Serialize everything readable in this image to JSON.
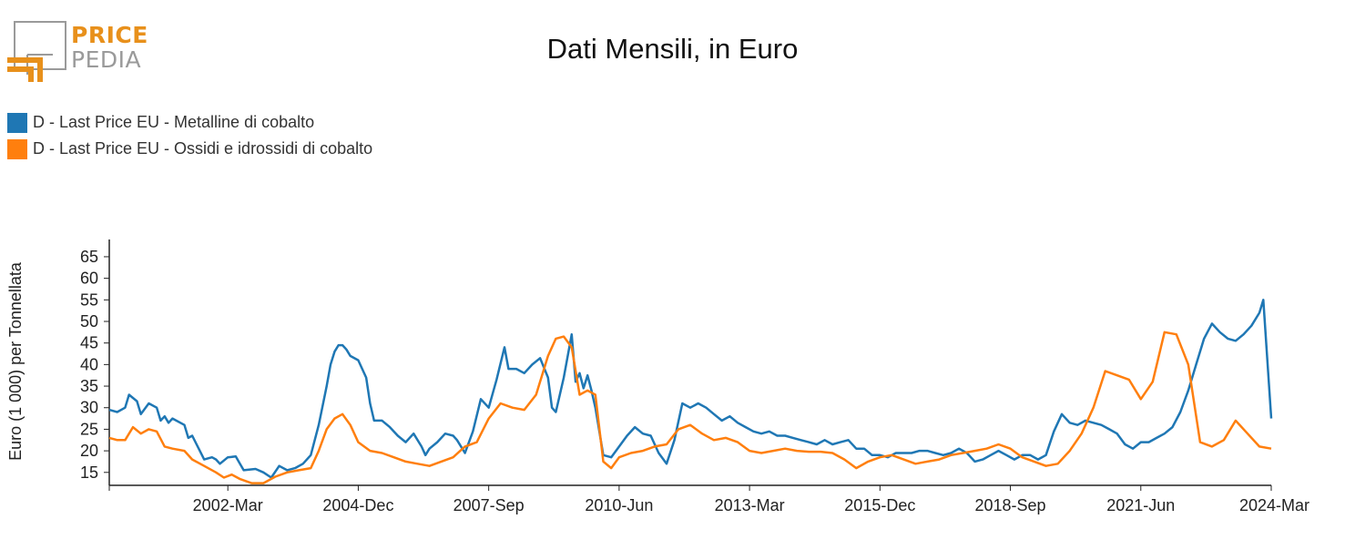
{
  "logo": {
    "line1": "PRICE",
    "line2": "PEDIA",
    "colors": {
      "orange": "#e8901b",
      "grey": "#9a9a9a"
    }
  },
  "title": "Dati Mensili, in Euro",
  "legend": [
    {
      "label": "D - Last Price EU - Metalline di cobalto",
      "color": "#1f77b4"
    },
    {
      "label": "D - Last Price EU - Ossidi e idrossidi di cobalto",
      "color": "#ff7f0e"
    }
  ],
  "chart_data": {
    "type": "line",
    "ylabel": "Euro (1 000) per Tonnellata",
    "ylim": [
      12,
      69
    ],
    "yticks": [
      15,
      20,
      25,
      30,
      35,
      40,
      45,
      50,
      55,
      60,
      65
    ],
    "x_range": [
      "1999-09",
      "2024-03"
    ],
    "x_ticks": [
      "2002-Mar",
      "2004-Dec",
      "2007-Sep",
      "2010-Jun",
      "2013-Mar",
      "2015-Dec",
      "2018-Sep",
      "2021-Jun",
      "2024-Mar"
    ],
    "grid": false,
    "legend_position": "top-left",
    "series": [
      {
        "name": "D - Last Price EU - Metalline di cobalto",
        "color": "#1f77b4",
        "points": [
          [
            "1999-09",
            29.5
          ],
          [
            "1999-11",
            29.0
          ],
          [
            "2000-01",
            30.0
          ],
          [
            "2000-02",
            33.0
          ],
          [
            "2000-04",
            31.5
          ],
          [
            "2000-05",
            28.5
          ],
          [
            "2000-07",
            31.0
          ],
          [
            "2000-09",
            30.0
          ],
          [
            "2000-10",
            27.0
          ],
          [
            "2000-11",
            28.0
          ],
          [
            "2000-12",
            26.5
          ],
          [
            "2001-01",
            27.5
          ],
          [
            "2001-04",
            26.0
          ],
          [
            "2001-05",
            23.0
          ],
          [
            "2001-06",
            23.5
          ],
          [
            "2001-09",
            18.0
          ],
          [
            "2001-11",
            18.5
          ],
          [
            "2001-12",
            18.0
          ],
          [
            "2002-01",
            17.0
          ],
          [
            "2002-03",
            18.5
          ],
          [
            "2002-05",
            18.7
          ],
          [
            "2002-07",
            15.5
          ],
          [
            "2002-10",
            15.8
          ],
          [
            "2002-12",
            15.0
          ],
          [
            "2003-02",
            13.8
          ],
          [
            "2003-04",
            16.5
          ],
          [
            "2003-06",
            15.5
          ],
          [
            "2003-08",
            16.0
          ],
          [
            "2003-10",
            17.0
          ],
          [
            "2003-12",
            19.0
          ],
          [
            "2004-02",
            26.0
          ],
          [
            "2004-04",
            35.0
          ],
          [
            "2004-05",
            40.0
          ],
          [
            "2004-06",
            43.0
          ],
          [
            "2004-07",
            44.5
          ],
          [
            "2004-08",
            44.5
          ],
          [
            "2004-09",
            43.5
          ],
          [
            "2004-10",
            42.0
          ],
          [
            "2004-12",
            41.0
          ],
          [
            "2005-02",
            37.0
          ],
          [
            "2005-03",
            31.0
          ],
          [
            "2005-04",
            27.0
          ],
          [
            "2005-06",
            27.0
          ],
          [
            "2005-08",
            25.5
          ],
          [
            "2005-10",
            23.5
          ],
          [
            "2005-12",
            22.0
          ],
          [
            "2006-02",
            24.0
          ],
          [
            "2006-04",
            21.0
          ],
          [
            "2006-05",
            19.0
          ],
          [
            "2006-06",
            20.5
          ],
          [
            "2006-08",
            22.0
          ],
          [
            "2006-10",
            24.0
          ],
          [
            "2006-12",
            23.5
          ],
          [
            "2007-01",
            22.5
          ],
          [
            "2007-03",
            19.5
          ],
          [
            "2007-05",
            24.5
          ],
          [
            "2007-07",
            32.0
          ],
          [
            "2007-09",
            30.0
          ],
          [
            "2007-11",
            36.5
          ],
          [
            "2008-01",
            44.0
          ],
          [
            "2008-02",
            39.0
          ],
          [
            "2008-04",
            39.0
          ],
          [
            "2008-06",
            38.0
          ],
          [
            "2008-08",
            40.0
          ],
          [
            "2008-10",
            41.5
          ],
          [
            "2008-12",
            37.0
          ],
          [
            "2009-01",
            30.0
          ],
          [
            "2009-02",
            29.0
          ],
          [
            "2009-04",
            37.0
          ],
          [
            "2009-06",
            47.0
          ],
          [
            "2009-07",
            36.0
          ],
          [
            "2009-08",
            38.0
          ],
          [
            "2009-09",
            34.5
          ],
          [
            "2009-10",
            37.5
          ],
          [
            "2009-11",
            34.0
          ],
          [
            "2009-12",
            30.0
          ],
          [
            "2010-02",
            19.0
          ],
          [
            "2010-04",
            18.5
          ],
          [
            "2010-06",
            21.0
          ],
          [
            "2010-08",
            23.5
          ],
          [
            "2010-10",
            25.5
          ],
          [
            "2010-12",
            24.0
          ],
          [
            "2011-02",
            23.5
          ],
          [
            "2011-04",
            19.5
          ],
          [
            "2011-06",
            17.0
          ],
          [
            "2011-08",
            22.5
          ],
          [
            "2011-10",
            31.0
          ],
          [
            "2011-12",
            30.0
          ],
          [
            "2012-02",
            31.0
          ],
          [
            "2012-04",
            30.0
          ],
          [
            "2012-06",
            28.5
          ],
          [
            "2012-08",
            27.0
          ],
          [
            "2012-10",
            28.0
          ],
          [
            "2012-12",
            26.5
          ],
          [
            "2013-02",
            25.5
          ],
          [
            "2013-04",
            24.5
          ],
          [
            "2013-06",
            24.0
          ],
          [
            "2013-08",
            24.5
          ],
          [
            "2013-10",
            23.5
          ],
          [
            "2013-12",
            23.5
          ],
          [
            "2014-02",
            23.0
          ],
          [
            "2014-04",
            22.5
          ],
          [
            "2014-06",
            22.0
          ],
          [
            "2014-08",
            21.5
          ],
          [
            "2014-10",
            22.5
          ],
          [
            "2014-12",
            21.5
          ],
          [
            "2015-02",
            22.0
          ],
          [
            "2015-04",
            22.5
          ],
          [
            "2015-06",
            20.5
          ],
          [
            "2015-08",
            20.5
          ],
          [
            "2015-10",
            19.0
          ],
          [
            "2015-12",
            19.0
          ],
          [
            "2016-02",
            18.5
          ],
          [
            "2016-04",
            19.5
          ],
          [
            "2016-06",
            19.5
          ],
          [
            "2016-08",
            19.5
          ],
          [
            "2016-10",
            20.0
          ],
          [
            "2016-12",
            20.0
          ],
          [
            "2017-02",
            19.5
          ],
          [
            "2017-04",
            19.0
          ],
          [
            "2017-06",
            19.5
          ],
          [
            "2017-08",
            20.5
          ],
          [
            "2017-10",
            19.5
          ],
          [
            "2017-12",
            17.5
          ],
          [
            "2018-02",
            18.0
          ],
          [
            "2018-04",
            19.0
          ],
          [
            "2018-06",
            20.0
          ],
          [
            "2018-08",
            19.0
          ],
          [
            "2018-10",
            18.0
          ],
          [
            "2018-12",
            19.0
          ],
          [
            "2019-02",
            19.0
          ],
          [
            "2019-04",
            18.0
          ],
          [
            "2019-06",
            19.0
          ],
          [
            "2019-08",
            24.5
          ],
          [
            "2019-10",
            28.5
          ],
          [
            "2019-12",
            26.5
          ],
          [
            "2020-02",
            26.0
          ],
          [
            "2020-04",
            27.0
          ],
          [
            "2020-06",
            26.5
          ],
          [
            "2020-08",
            26.0
          ],
          [
            "2020-10",
            25.0
          ],
          [
            "2020-12",
            24.0
          ],
          [
            "2021-02",
            21.5
          ],
          [
            "2021-04",
            20.5
          ],
          [
            "2021-06",
            22.0
          ],
          [
            "2021-08",
            22.0
          ],
          [
            "2021-10",
            23.0
          ],
          [
            "2021-12",
            24.0
          ],
          [
            "2022-02",
            25.5
          ],
          [
            "2022-04",
            29.0
          ],
          [
            "2022-06",
            34.0
          ],
          [
            "2022-08",
            40.0
          ],
          [
            "2022-10",
            46.0
          ],
          [
            "2022-12",
            49.5
          ],
          [
            "2023-02",
            47.5
          ],
          [
            "2023-04",
            46.0
          ],
          [
            "2023-06",
            45.5
          ],
          [
            "2023-08",
            47.0
          ],
          [
            "2023-10",
            49.0
          ],
          [
            "2023-12",
            52.0
          ],
          [
            "2024-01",
            55.0
          ],
          [
            "2024-03",
            27.5
          ]
        ]
      },
      {
        "name": "D - Last Price EU - Ossidi e idrossidi di cobalto",
        "color": "#ff7f0e",
        "points": [
          [
            "1999-09",
            23.0
          ],
          [
            "1999-11",
            22.5
          ],
          [
            "2000-01",
            22.5
          ],
          [
            "2000-03",
            25.5
          ],
          [
            "2000-05",
            24.0
          ],
          [
            "2000-07",
            25.0
          ],
          [
            "2000-09",
            24.5
          ],
          [
            "2000-11",
            21.0
          ],
          [
            "2001-01",
            20.5
          ],
          [
            "2001-04",
            20.0
          ],
          [
            "2001-06",
            18.0
          ],
          [
            "2001-09",
            16.5
          ],
          [
            "2001-12",
            15.0
          ],
          [
            "2002-02",
            13.8
          ],
          [
            "2002-04",
            14.5
          ],
          [
            "2002-06",
            13.5
          ],
          [
            "2002-09",
            12.5
          ],
          [
            "2002-12",
            12.5
          ],
          [
            "2003-03",
            14.0
          ],
          [
            "2003-06",
            15.0
          ],
          [
            "2003-09",
            15.5
          ],
          [
            "2003-12",
            16.0
          ],
          [
            "2004-02",
            20.0
          ],
          [
            "2004-04",
            25.0
          ],
          [
            "2004-06",
            27.5
          ],
          [
            "2004-08",
            28.5
          ],
          [
            "2004-10",
            26.0
          ],
          [
            "2004-12",
            22.0
          ],
          [
            "2005-03",
            20.0
          ],
          [
            "2005-06",
            19.5
          ],
          [
            "2005-09",
            18.5
          ],
          [
            "2005-12",
            17.5
          ],
          [
            "2006-03",
            17.0
          ],
          [
            "2006-06",
            16.5
          ],
          [
            "2006-09",
            17.5
          ],
          [
            "2006-12",
            18.5
          ],
          [
            "2007-03",
            21.0
          ],
          [
            "2007-06",
            22.0
          ],
          [
            "2007-09",
            27.5
          ],
          [
            "2007-12",
            31.0
          ],
          [
            "2008-03",
            30.0
          ],
          [
            "2008-06",
            29.5
          ],
          [
            "2008-09",
            33.0
          ],
          [
            "2008-12",
            42.0
          ],
          [
            "2009-02",
            46.0
          ],
          [
            "2009-04",
            46.5
          ],
          [
            "2009-06",
            44.0
          ],
          [
            "2009-08",
            33.0
          ],
          [
            "2009-10",
            34.0
          ],
          [
            "2009-12",
            33.0
          ],
          [
            "2010-02",
            17.5
          ],
          [
            "2010-04",
            16.0
          ],
          [
            "2010-06",
            18.5
          ],
          [
            "2010-09",
            19.5
          ],
          [
            "2010-12",
            20.0
          ],
          [
            "2011-03",
            21.0
          ],
          [
            "2011-06",
            21.5
          ],
          [
            "2011-09",
            25.0
          ],
          [
            "2011-12",
            26.0
          ],
          [
            "2012-03",
            24.0
          ],
          [
            "2012-06",
            22.5
          ],
          [
            "2012-09",
            23.0
          ],
          [
            "2012-12",
            22.0
          ],
          [
            "2013-03",
            20.0
          ],
          [
            "2013-06",
            19.5
          ],
          [
            "2013-09",
            20.0
          ],
          [
            "2013-12",
            20.5
          ],
          [
            "2014-03",
            20.0
          ],
          [
            "2014-06",
            19.8
          ],
          [
            "2014-09",
            19.8
          ],
          [
            "2014-12",
            19.5
          ],
          [
            "2015-03",
            18.0
          ],
          [
            "2015-06",
            16.0
          ],
          [
            "2015-09",
            17.5
          ],
          [
            "2015-12",
            18.5
          ],
          [
            "2016-03",
            19.0
          ],
          [
            "2016-06",
            18.0
          ],
          [
            "2016-09",
            17.0
          ],
          [
            "2016-12",
            17.5
          ],
          [
            "2017-03",
            18.0
          ],
          [
            "2017-06",
            19.0
          ],
          [
            "2017-09",
            19.5
          ],
          [
            "2017-12",
            20.0
          ],
          [
            "2018-03",
            20.5
          ],
          [
            "2018-06",
            21.5
          ],
          [
            "2018-09",
            20.5
          ],
          [
            "2018-12",
            18.5
          ],
          [
            "2019-03",
            17.5
          ],
          [
            "2019-06",
            16.5
          ],
          [
            "2019-09",
            17.0
          ],
          [
            "2019-12",
            20.0
          ],
          [
            "2020-03",
            24.0
          ],
          [
            "2020-06",
            30.0
          ],
          [
            "2020-09",
            38.5
          ],
          [
            "2020-12",
            37.5
          ],
          [
            "2021-03",
            36.5
          ],
          [
            "2021-06",
            32.0
          ],
          [
            "2021-09",
            36.0
          ],
          [
            "2021-12",
            47.5
          ],
          [
            "2022-03",
            47.0
          ],
          [
            "2022-06",
            40.0
          ],
          [
            "2022-09",
            22.0
          ],
          [
            "2022-12",
            21.0
          ],
          [
            "2023-03",
            22.5
          ],
          [
            "2023-06",
            27.0
          ],
          [
            "2023-09",
            24.0
          ],
          [
            "2023-12",
            21.0
          ],
          [
            "2024-03",
            20.5
          ]
        ]
      }
    ]
  }
}
